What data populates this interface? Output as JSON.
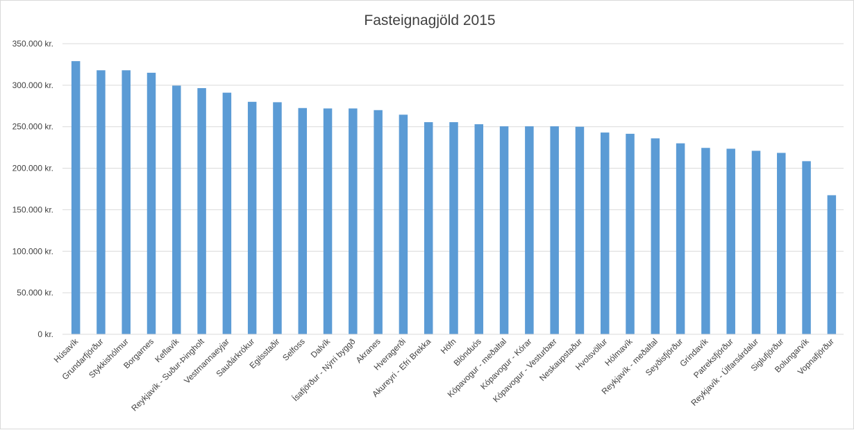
{
  "chart_data": {
    "type": "bar",
    "title": "Fasteignagjöld 2015",
    "xlabel": "",
    "ylabel": "",
    "ylim": [
      0,
      350000
    ],
    "y_ticks": [
      {
        "value": 0,
        "label": "0 kr."
      },
      {
        "value": 50000,
        "label": "50.000 kr."
      },
      {
        "value": 100000,
        "label": "100.000 kr."
      },
      {
        "value": 150000,
        "label": "150.000 kr."
      },
      {
        "value": 200000,
        "label": "200.000 kr."
      },
      {
        "value": 250000,
        "label": "250.000 kr."
      },
      {
        "value": 300000,
        "label": "300.000 kr."
      },
      {
        "value": 350000,
        "label": "350.000 kr."
      }
    ],
    "grid": true,
    "bar_color": "#5b9bd5",
    "categories": [
      "Húsavík",
      "Grundarfjörður",
      "Stykkishólmur",
      "Borgarnes",
      "Keflavík",
      "Reykjavík - Suður-Þingholt",
      "Vestmannaeyjar",
      "Sauðárkrókur",
      "Egilsstaðir",
      "Selfoss",
      "Dalvík",
      "Ísafjörður - Nýrri byggð",
      "Akranes",
      "Hveragerði",
      "Akureyri - Efri Brekka",
      "Höfn",
      "Blönduós",
      "Kópavogur - meðaltal",
      "Kópavogur - Kórar",
      "Kópavogur - Vesturbær",
      "Neskaupstaður",
      "Hvolsvöllur",
      "Hólmavík",
      "Reykjavík - meðaltal",
      "Seyðisfjörður",
      "Grindavík",
      "Patreksfjörður",
      "Reykjavík - Úlfarsárdalur",
      "Siglufjörður",
      "Bolungarvík",
      "Vopnafjörður"
    ],
    "values": [
      329000,
      318000,
      318000,
      315000,
      299500,
      296500,
      291000,
      280000,
      279500,
      272500,
      272000,
      272000,
      270000,
      264500,
      255500,
      255500,
      253000,
      250500,
      250500,
      250500,
      250000,
      243000,
      241500,
      236000,
      230000,
      224500,
      223500,
      221000,
      218500,
      208500,
      167500
    ]
  }
}
